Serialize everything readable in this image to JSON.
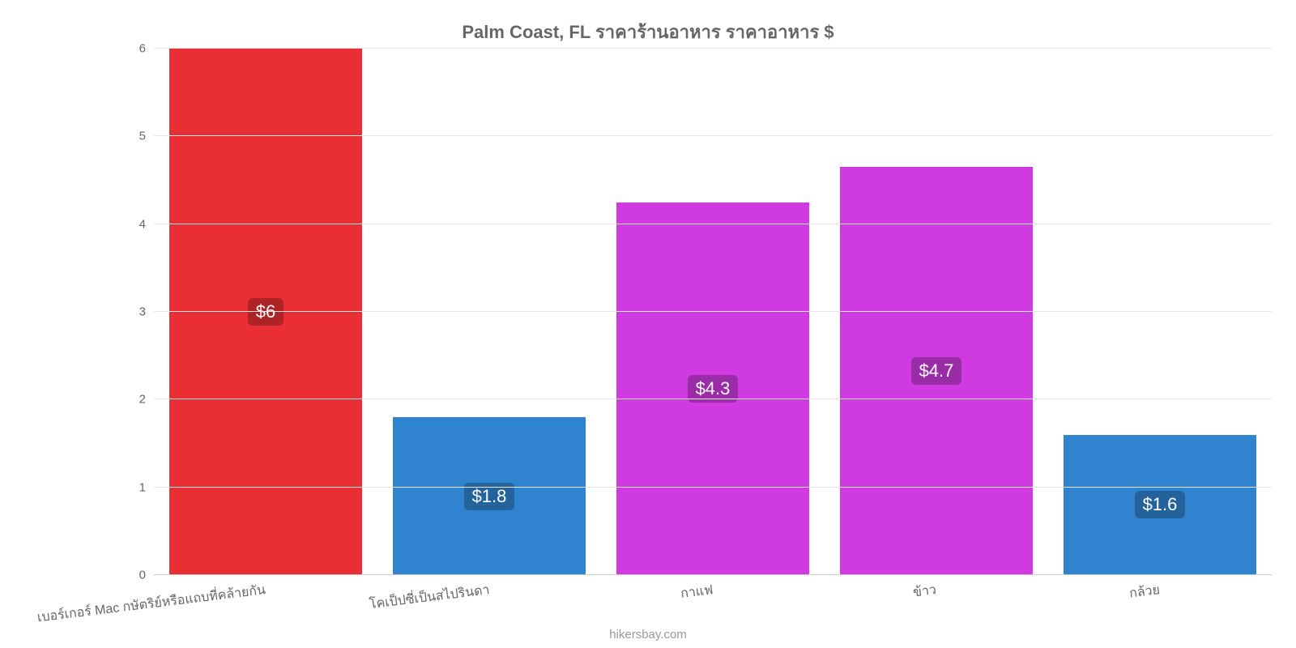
{
  "chart": {
    "type": "bar",
    "title": "Palm Coast, FL ราคาร้านอาหาร ราคาอาหาร $",
    "title_fontsize": 22,
    "title_color": "#666666",
    "background_color": "#ffffff",
    "grid_color": "#e6e6e6",
    "axis_text_color": "#666666",
    "footer": "hikersbay.com",
    "footer_color": "#999999",
    "y_axis": {
      "min": 0,
      "max": 6,
      "ticks": [
        0,
        1,
        2,
        3,
        4,
        5,
        6
      ]
    },
    "x_axis": {
      "label_rotation_deg": -7
    },
    "bar_width_ratio": 0.86,
    "value_label_style": {
      "font_size": 22,
      "color": "#ffffff",
      "bg": "rgba(0,0,0,0.25)",
      "radius": 6
    },
    "categories": [
      {
        "label": "เบอร์เกอร์ Mac กษัตริย์หรือแถบที่คล้ายกัน",
        "value": 6.0,
        "value_label": "$6",
        "color": "#e92f33"
      },
      {
        "label": "โคเป็ปซี่เป็นสไปรินดา",
        "value": 1.8,
        "value_label": "$1.8",
        "color": "#2f83cf"
      },
      {
        "label": "กาแฟ",
        "value": 4.25,
        "value_label": "$4.3",
        "color": "#cf3be0"
      },
      {
        "label": "ข้าว",
        "value": 4.65,
        "value_label": "$4.7",
        "color": "#cf3be0"
      },
      {
        "label": "กล้วย",
        "value": 1.6,
        "value_label": "$1.6",
        "color": "#2f83cf"
      }
    ]
  }
}
